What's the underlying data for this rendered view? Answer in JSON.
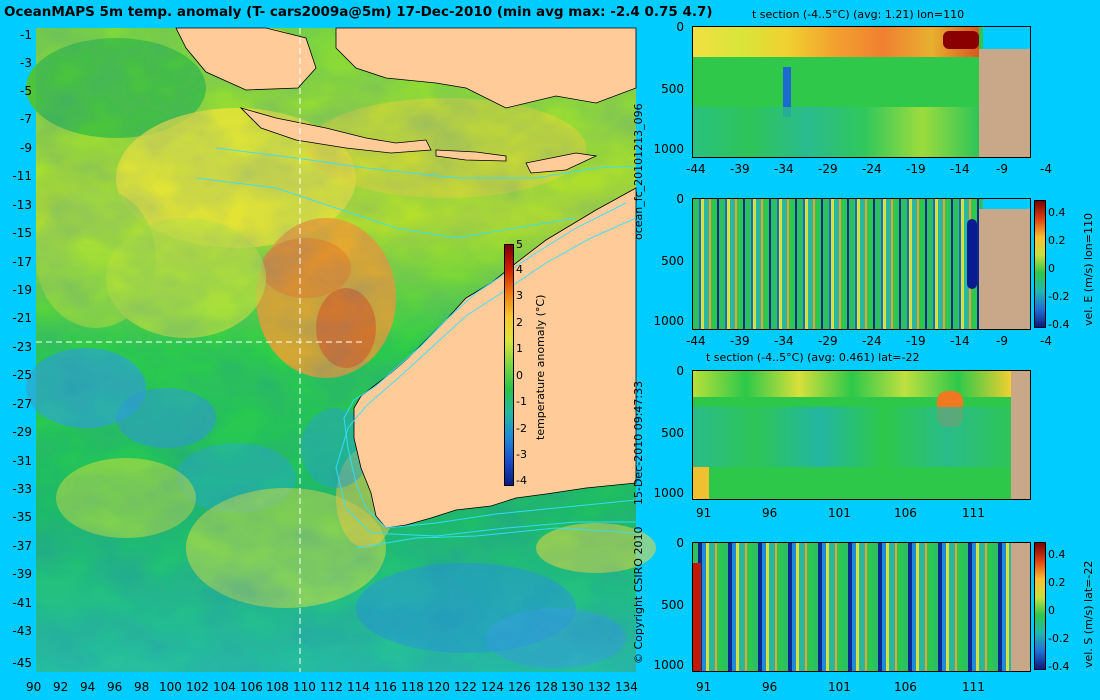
{
  "main_title": "OceanMAPS 5m temp. anomaly (T- cars2009a@5m) 17-Dec-2010 (min avg max: -2.4 0.75 4.7)",
  "map": {
    "lat_labels": [
      "-1",
      "-3",
      "-5",
      "-7",
      "-9",
      "-11",
      "-13",
      "-15",
      "-17",
      "-19",
      "-21",
      "-23",
      "-25",
      "-27",
      "-29",
      "-31",
      "-33",
      "-35",
      "-37",
      "-39",
      "-41",
      "-43",
      "-45"
    ],
    "lon_labels": [
      "90",
      "92",
      "94",
      "96",
      "98",
      "100",
      "102",
      "104",
      "106",
      "108",
      "110",
      "112",
      "114",
      "116",
      "118",
      "120",
      "122",
      "124",
      "126",
      "128",
      "130",
      "132",
      "134"
    ],
    "colorbar": {
      "label": "temperature anomaly (°C)",
      "ticks": [
        "5",
        "4",
        "3",
        "2",
        "1",
        "0",
        "-1",
        "-2",
        "-3",
        "-4"
      ]
    }
  },
  "panels": [
    {
      "title": "t section (-4..5°C) (avg: 1.21) lon=110",
      "y_ticks": [
        "0",
        "500",
        "1000"
      ],
      "x_ticks": [
        "-44",
        "-39",
        "-34",
        "-29",
        "-24",
        "-19",
        "-14",
        "-9",
        "-4"
      ],
      "colorbar": null
    },
    {
      "title": "",
      "y_ticks": [
        "0",
        "500",
        "1000"
      ],
      "x_ticks": [
        "-44",
        "-39",
        "-34",
        "-29",
        "-24",
        "-19",
        "-14",
        "-9",
        "-4"
      ],
      "colorbar": {
        "label": "vel. E (m/s) lon=110",
        "ticks": [
          "0.4",
          "0.2",
          "0",
          "-0.2",
          "-0.4"
        ]
      }
    },
    {
      "title": "t section (-4..5°C) (avg: 0.461) lat=-22",
      "y_ticks": [
        "0",
        "500",
        "1000"
      ],
      "x_ticks": [
        "91",
        "96",
        "101",
        "106",
        "111"
      ],
      "colorbar": null
    },
    {
      "title": "",
      "y_ticks": [
        "0",
        "500",
        "1000"
      ],
      "x_ticks": [
        "91",
        "96",
        "101",
        "106",
        "111"
      ],
      "colorbar": {
        "label": "vel. S (m/s) lat=-22",
        "ticks": [
          "0.4",
          "0.2",
          "0",
          "-0.2",
          "-0.4"
        ]
      }
    }
  ],
  "side_labels": {
    "run_id": "ocean_fc_20101213_096",
    "timestamp": "15-Dec-2010 09:47:33",
    "copyright": "© Copyright CSIRO 2010"
  },
  "colors": {
    "background": "#00ccff",
    "land": "#ffcc99",
    "section_land": "#c8a888",
    "contour": "#33e0ff"
  }
}
